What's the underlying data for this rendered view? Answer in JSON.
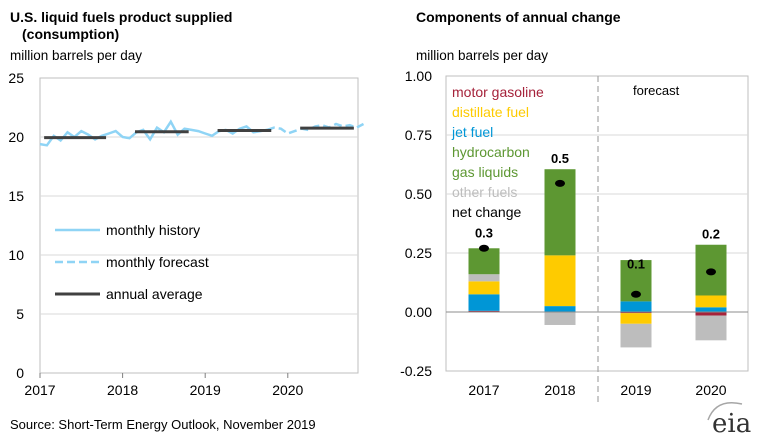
{
  "source": "Source: Short-Term Energy Outlook, November 2019",
  "logo": {
    "text": "eia"
  },
  "chart_data": [
    {
      "type": "line",
      "title_line1": "U.S. liquid fuels product supplied",
      "title_line2": "(consumption)",
      "ylabel": "million barrels per day",
      "ylim": [
        0,
        25
      ],
      "yticks": [
        "0",
        "5",
        "10",
        "15",
        "20",
        "25"
      ],
      "xticks": [
        "2017",
        "2018",
        "2019",
        "2020"
      ],
      "legend": [
        {
          "key": "history",
          "label": "monthly history"
        },
        {
          "key": "forecast",
          "label": "monthly forecast"
        },
        {
          "key": "annual",
          "label": "annual average"
        }
      ],
      "colors": {
        "history": "#8fd4f5",
        "forecast": "#8fd4f5",
        "annual": "#404040"
      },
      "series": [
        {
          "name": "monthly history",
          "start": 2017.0,
          "step": 0.08333,
          "values": [
            19.4,
            19.3,
            20.1,
            19.7,
            20.4,
            20.0,
            20.5,
            20.2,
            19.8,
            20.1,
            20.3,
            20.5,
            20.0,
            19.9,
            20.4,
            20.6,
            19.8,
            20.8,
            20.4,
            21.3,
            20.2,
            20.7,
            20.6,
            20.5,
            20.3,
            20.1,
            20.5,
            20.6,
            20.3,
            20.7,
            20.9,
            20.4,
            20.5,
            20.6
          ]
        },
        {
          "name": "monthly forecast",
          "start": 2019.75,
          "step": 0.08333,
          "values": [
            20.6,
            20.8,
            20.7,
            20.3,
            20.5,
            20.7,
            20.6,
            20.9,
            21.0,
            20.8,
            21.1,
            20.9,
            21.0,
            20.8,
            21.1
          ]
        },
        {
          "name": "annual average",
          "segments": [
            {
              "from": 2017.05,
              "to": 2017.8,
              "value": 19.95
            },
            {
              "from": 2018.15,
              "to": 2018.8,
              "value": 20.45
            },
            {
              "from": 2019.15,
              "to": 2019.8,
              "value": 20.55
            },
            {
              "from": 2020.15,
              "to": 2020.8,
              "value": 20.75
            }
          ]
        }
      ]
    },
    {
      "type": "bar",
      "title": "Components of annual change",
      "ylabel": "million barrels per day",
      "ylim": [
        -0.25,
        1.0
      ],
      "yticks": [
        "-0.25",
        "0.00",
        "0.25",
        "0.50",
        "0.75",
        "1.00"
      ],
      "categories": [
        "2017",
        "2018",
        "2019",
        "2020"
      ],
      "forecast_label": "forecast",
      "colors": {
        "motor gasoline": "#a5223a",
        "distillate fuel": "#fecb00",
        "jet fuel": "#0096d6",
        "hydrocarbon gas liquids": "#5d9732",
        "other fuels": "#bdbdbd",
        "net change": "#000000"
      },
      "legend": [
        {
          "label": "motor gasoline",
          "color": "#a5223a"
        },
        {
          "label": "distillate fuel",
          "color": "#fecb00"
        },
        {
          "label": "jet fuel",
          "color": "#0096d6"
        },
        {
          "label": "hydrocarbon",
          "color": "#5d9732"
        },
        {
          "label": "  gas liquids",
          "color": "#5d9732"
        },
        {
          "label": "other fuels",
          "color": "#bdbdbd"
        },
        {
          "label": "net change",
          "color": "#000000"
        }
      ],
      "series": [
        {
          "name": "motor gasoline",
          "values": [
            0.005,
            0.0,
            -0.005,
            -0.015
          ]
        },
        {
          "name": "jet fuel",
          "values": [
            0.07,
            0.025,
            0.045,
            0.02
          ]
        },
        {
          "name": "distillate fuel",
          "values": [
            0.055,
            0.215,
            -0.045,
            0.05
          ]
        },
        {
          "name": "other fuels",
          "values": [
            0.03,
            -0.055,
            -0.1,
            -0.105
          ]
        },
        {
          "name": "hydrocarbon gas liquids",
          "values": [
            0.11,
            0.365,
            0.175,
            0.215
          ]
        }
      ],
      "net_change": [
        0.27,
        0.545,
        0.075,
        0.17
      ],
      "net_labels": [
        "0.3",
        "0.5",
        "0.1",
        "0.2"
      ]
    }
  ]
}
